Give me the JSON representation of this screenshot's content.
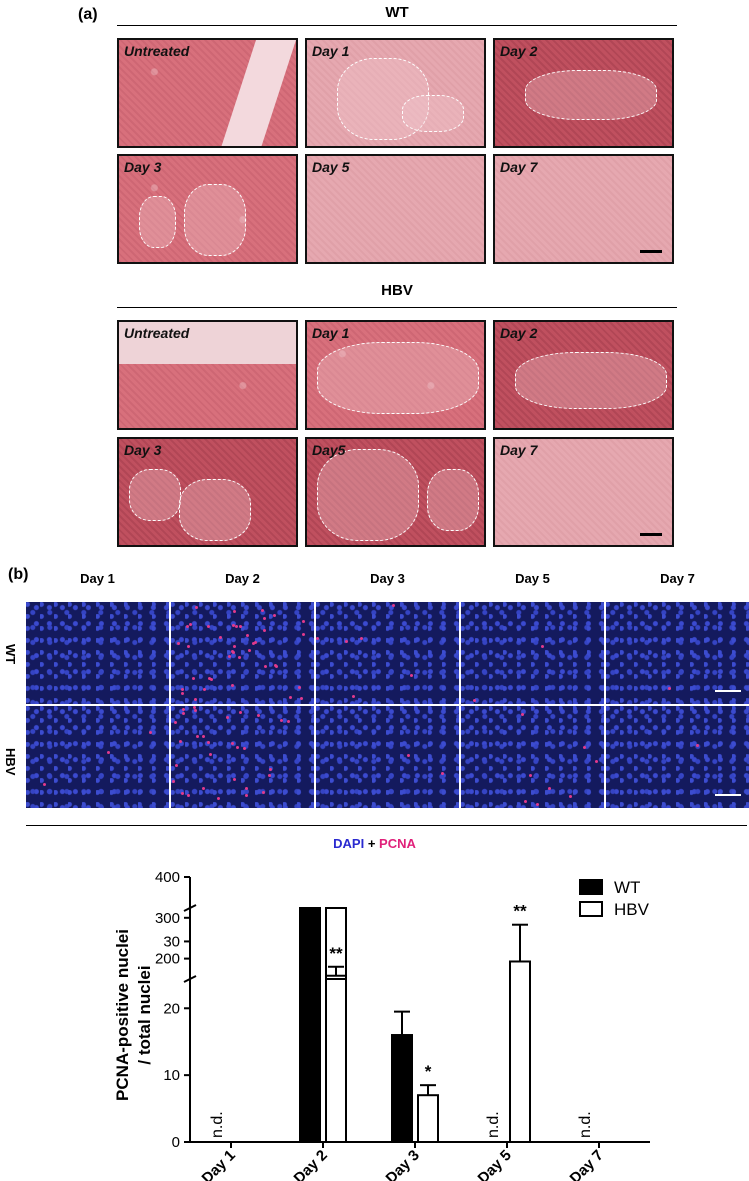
{
  "panel_a": {
    "label": "(a)",
    "sections": [
      {
        "title": "WT",
        "tiles": [
          "Untreated",
          "Day 1",
          "Day 2",
          "Day 3",
          "Day 5",
          "Day 7"
        ]
      },
      {
        "title": "HBV",
        "tiles": [
          "Untreated",
          "Day 1",
          "Day 2",
          "Day 3",
          "Day5",
          "Day 7"
        ]
      }
    ]
  },
  "panel_b": {
    "label": "(b)",
    "columns": [
      "Day 1",
      "Day 2",
      "Day 3",
      "Day 5",
      "Day 7"
    ],
    "rows": [
      "WT",
      "HBV"
    ],
    "stain_legend": {
      "dapi": "DAPI",
      "plus": "+",
      "pcna": "PCNA"
    },
    "colors": {
      "dapi": "#2a2ad0",
      "pcna": "#e0207a"
    }
  },
  "chart_data": {
    "type": "bar",
    "ylabel": "PCNA-positive nuclei / total nuclei",
    "ylabel_lines": [
      "PCNA-positive nuclei",
      "/ total nuclei"
    ],
    "categories": [
      "Day 1",
      "Day 2",
      "Day 3",
      "Day 5",
      "Day 7"
    ],
    "y_axis_broken": true,
    "lower_range": [
      0,
      35
    ],
    "upper_range": [
      150,
      400
    ],
    "lower_ticks": [
      "0",
      "10",
      "20",
      "30"
    ],
    "upper_ticks": [
      "200",
      "300",
      "400"
    ],
    "series": [
      {
        "name": "WT",
        "fill": "#000000",
        "values": [
          null,
          292,
          16,
          null,
          null
        ],
        "errors": [
          null,
          12,
          3.5,
          null,
          null
        ]
      },
      {
        "name": "HBV",
        "fill": "#ffffff",
        "values": [
          null,
          158,
          7,
          27,
          null
        ],
        "errors": [
          null,
          22,
          1.5,
          5.5,
          null
        ]
      }
    ],
    "annotations": {
      "not_detected": "n.d.",
      "significance": [
        {
          "category": "Day 2",
          "series": "HBV",
          "text": "**"
        },
        {
          "category": "Day 3",
          "series": "HBV",
          "text": "*"
        },
        {
          "category": "Day 5",
          "series": "HBV",
          "text": "**"
        }
      ],
      "nd_positions": [
        {
          "category": "Day 1",
          "series": "WT"
        },
        {
          "category": "Day 5",
          "series": "WT"
        },
        {
          "category": "Day 7",
          "series": "WT"
        }
      ]
    },
    "legend": [
      "WT",
      "HBV"
    ],
    "legend_position": "top-right"
  }
}
